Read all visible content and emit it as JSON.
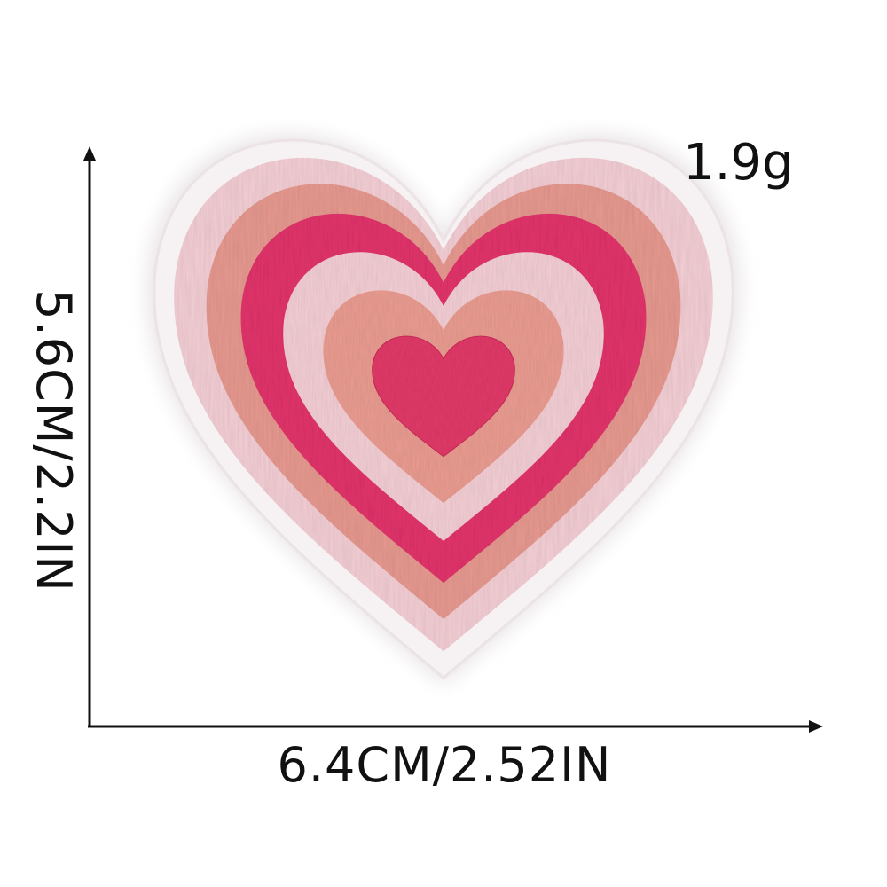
{
  "product": {
    "name": "Heart embroidered patch",
    "colors": {
      "base": "#f6f1f2",
      "edge": "#ebe3e5",
      "light_pink": "#f4cfd6",
      "salmon": "#e79a90",
      "hot_pink": "#e2346c",
      "inner_salmon": "#eb9d92",
      "center": "#e23a69"
    }
  },
  "labels": {
    "weight": "1.9g",
    "width": "6.4CM/2.52IN",
    "height": "5.6CM/2.2IN"
  },
  "arrows": {
    "color": "#111111"
  }
}
